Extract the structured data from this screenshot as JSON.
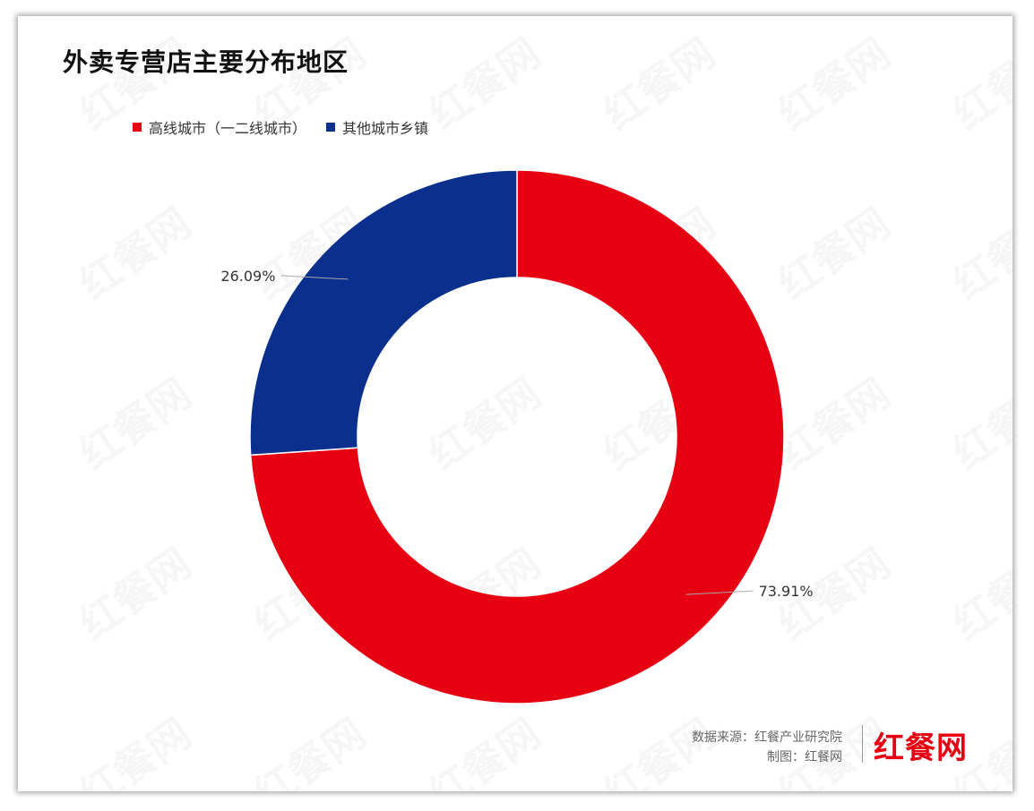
{
  "title": "外卖专营店主要分布地区",
  "colors": {
    "high_tier": "#e60012",
    "other": "#0a2f8c"
  },
  "legend": [
    {
      "label": "高线城市（一二线城市）",
      "color": "#e60012"
    },
    {
      "label": "其他城市乡镇",
      "color": "#0a2f8c"
    }
  ],
  "chart_data": {
    "type": "pie",
    "donut": true,
    "categories": [
      "高线城市（一二线城市）",
      "其他城市乡镇"
    ],
    "values": [
      73.91,
      26.09
    ],
    "labels": [
      "73.91%",
      "26.09%"
    ],
    "colors": [
      "#e60012",
      "#0a2f8c"
    ],
    "legend_position": "top-left",
    "title": "外卖专营店主要分布地区"
  },
  "source": {
    "line1": "数据来源：红餐产业研究院",
    "line2": "制图：红餐网"
  },
  "logo_text": "红餐网",
  "watermark_text": "红餐网"
}
